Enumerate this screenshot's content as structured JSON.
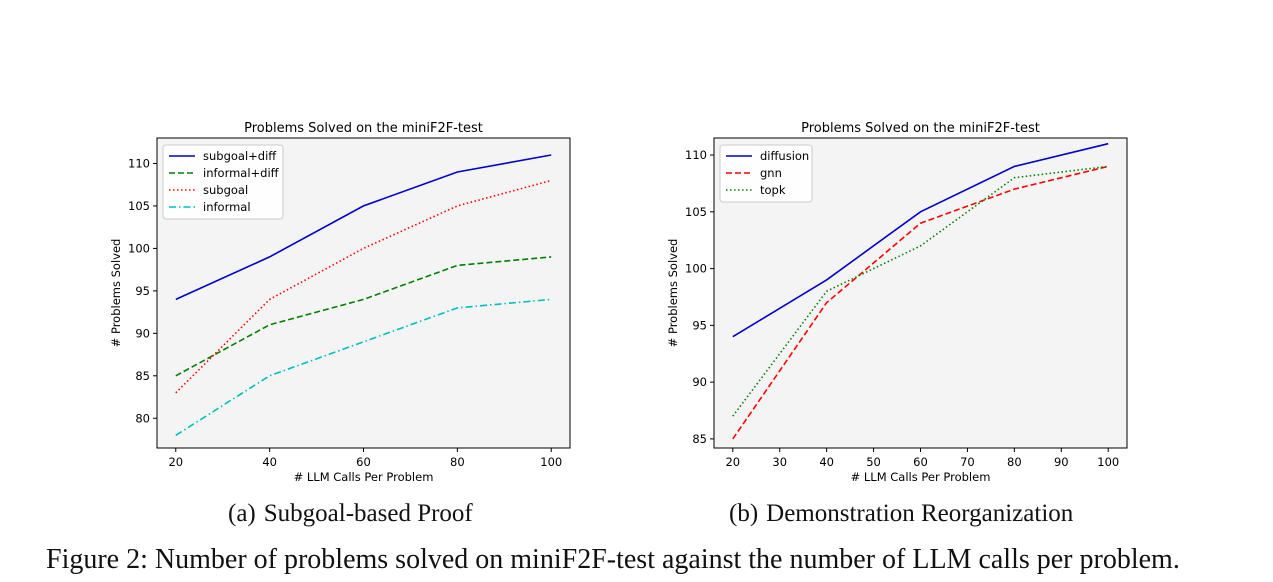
{
  "figure": {
    "caption_label": "Figure 2:",
    "caption_text": "Number of problems solved on miniF2F-test against the number of LLM calls per problem.",
    "subcaptions": [
      {
        "label": "(a)",
        "text": "Subgoal-based Proof"
      },
      {
        "label": "(b)",
        "text": "Demonstration Reorganization"
      }
    ]
  },
  "chart_data": [
    {
      "type": "line",
      "title": "Problems Solved on the miniF2F-test",
      "xlabel": "# LLM Calls Per Problem",
      "ylabel": "# Problems Solved",
      "x": [
        20,
        40,
        60,
        80,
        100
      ],
      "xticks": [
        20,
        40,
        60,
        80,
        100
      ],
      "yticks": [
        80,
        85,
        90,
        95,
        100,
        105,
        110
      ],
      "xlim": [
        16,
        104
      ],
      "ylim": [
        76.5,
        113
      ],
      "legend": "top-left",
      "grid": false,
      "background": "#f4f4f4",
      "series": [
        {
          "name": "subgoal+diff",
          "values": [
            94,
            99,
            105,
            109,
            111
          ],
          "color": "#0000cc",
          "style": "solid"
        },
        {
          "name": "informal+diff",
          "values": [
            85,
            91,
            94,
            98,
            99
          ],
          "color": "#008000",
          "style": "dashed"
        },
        {
          "name": "subgoal",
          "values": [
            83,
            94,
            100,
            105,
            108
          ],
          "color": "#ff0000",
          "style": "dotted"
        },
        {
          "name": "informal",
          "values": [
            78,
            85,
            89,
            93,
            94
          ],
          "color": "#00bfbf",
          "style": "dashdot"
        }
      ]
    },
    {
      "type": "line",
      "title": "Problems Solved on the miniF2F-test",
      "xlabel": "# LLM Calls Per Problem",
      "ylabel": "# Problems Solved",
      "x": [
        20,
        40,
        60,
        80,
        100
      ],
      "xticks": [
        20,
        30,
        40,
        50,
        60,
        70,
        80,
        90,
        100
      ],
      "yticks": [
        85,
        90,
        95,
        100,
        105,
        110
      ],
      "xlim": [
        16,
        104
      ],
      "ylim": [
        84.2,
        111.5
      ],
      "legend": "top-left",
      "grid": false,
      "background": "#f4f4f4",
      "series": [
        {
          "name": "diffusion",
          "values": [
            94,
            99,
            105,
            109,
            111
          ],
          "color": "#0000cc",
          "style": "solid"
        },
        {
          "name": "gnn",
          "values": [
            85,
            97,
            104,
            107,
            109
          ],
          "color": "#ff0000",
          "style": "dashed"
        },
        {
          "name": "topk",
          "values": [
            87,
            98,
            102,
            108,
            109
          ],
          "color": "#008000",
          "style": "dotted"
        }
      ]
    }
  ]
}
